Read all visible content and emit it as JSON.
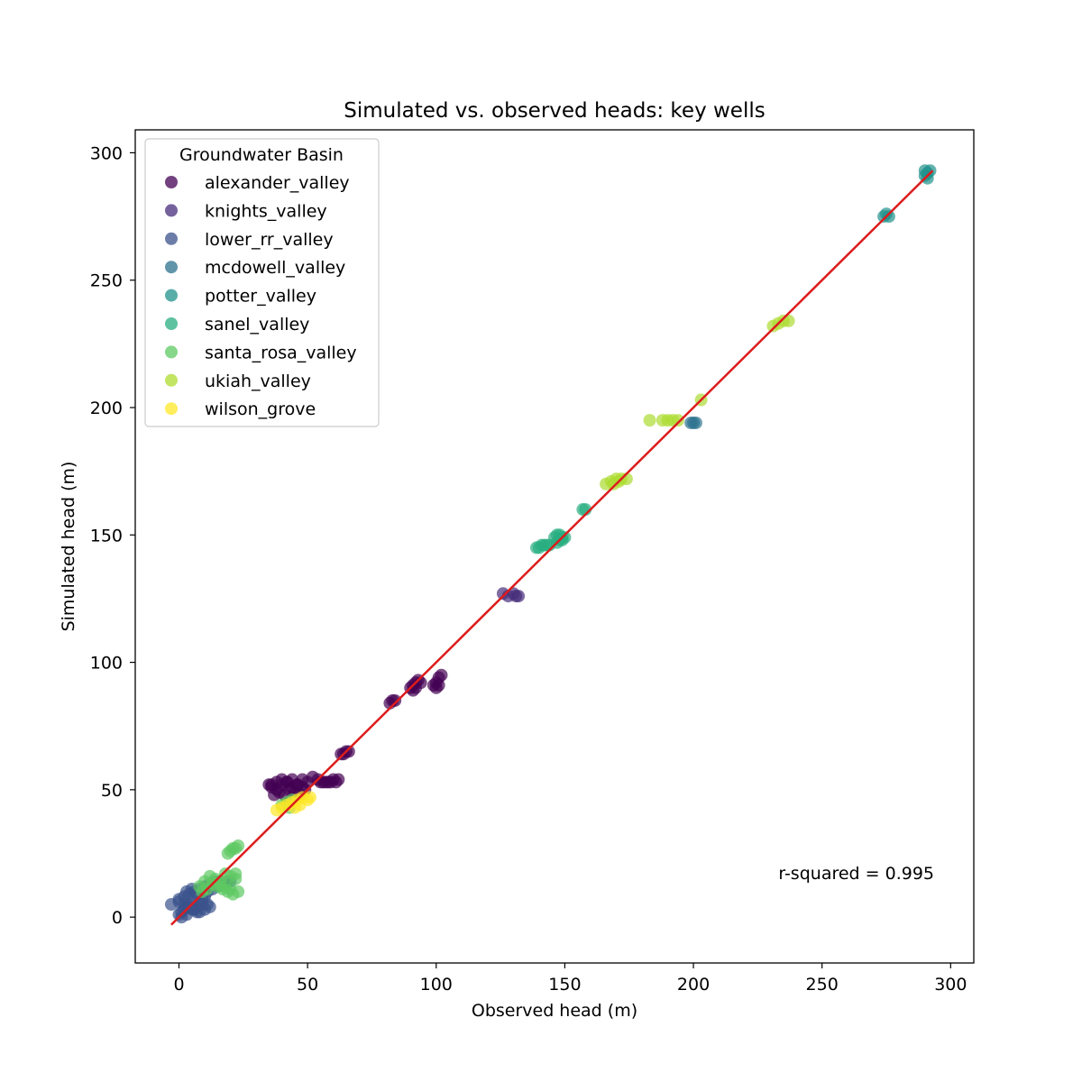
{
  "chart_data": {
    "type": "scatter",
    "title": "Simulated vs. observed heads: key wells",
    "xlabel": "Observed head (m)",
    "ylabel": "Simulated head (m)",
    "xlim": [
      -17,
      309
    ],
    "ylim": [
      -18,
      309
    ],
    "xticks": [
      0,
      50,
      100,
      150,
      200,
      250,
      300
    ],
    "yticks": [
      0,
      50,
      100,
      150,
      200,
      250,
      300
    ],
    "grid": false,
    "legend": {
      "title": "Groundwater Basin",
      "placement": "upper-left"
    },
    "annotation": "r-squared = 0.995",
    "fit_line": {
      "color": "#dd1c1c",
      "x": [
        -3,
        293
      ],
      "y": [
        -3,
        293
      ]
    },
    "series": [
      {
        "name": "alexander_valley",
        "color": "#440154",
        "x": [
          35,
          36,
          38,
          40,
          42,
          44,
          46,
          48,
          50,
          37,
          39,
          41,
          43,
          45,
          47,
          49,
          36,
          38,
          40,
          42,
          44,
          46,
          48,
          52,
          54,
          56,
          58,
          60,
          62,
          55,
          57,
          59,
          61,
          63,
          64,
          65,
          66,
          82,
          83,
          84,
          90,
          91,
          92,
          93,
          94,
          91,
          92,
          99,
          100,
          101,
          102,
          100,
          101
        ],
        "y": [
          52,
          51,
          50,
          52,
          53,
          54,
          52,
          51,
          53,
          48,
          49,
          48,
          50,
          49,
          48,
          50,
          52,
          53,
          54,
          53,
          51,
          52,
          54,
          55,
          54,
          53,
          53,
          54,
          54,
          53,
          53,
          53,
          53,
          64,
          64,
          65,
          65,
          84,
          85,
          85,
          90,
          91,
          92,
          93,
          92,
          89,
          90,
          91,
          92,
          94,
          95,
          90,
          91
        ]
      },
      {
        "name": "knights_valley",
        "color": "#472d7b",
        "x": [
          126,
          128,
          130,
          131,
          132
        ],
        "y": [
          127,
          126,
          127,
          126,
          126
        ]
      },
      {
        "name": "lower_rr_valley",
        "color": "#3b528b",
        "x": [
          -3,
          0,
          1,
          2,
          3,
          4,
          5,
          6,
          7,
          8,
          9,
          10,
          11,
          12,
          0,
          2,
          4,
          6,
          8,
          10,
          12,
          14,
          16,
          18,
          1,
          3,
          5,
          7,
          9,
          11,
          13,
          15,
          17,
          19,
          20,
          0,
          2,
          4,
          6,
          8,
          10,
          3,
          5,
          7
        ],
        "y": [
          5,
          1,
          2,
          3,
          4,
          5,
          6,
          3,
          4,
          6,
          7,
          8,
          5,
          4,
          7,
          8,
          9,
          10,
          11,
          12,
          13,
          14,
          14,
          13,
          0,
          1,
          3,
          2,
          5,
          10,
          11,
          12,
          13,
          14,
          14,
          6,
          5,
          4,
          3,
          2,
          3,
          10,
          11,
          9
        ]
      },
      {
        "name": "mcdowell_valley",
        "color": "#2c728e",
        "x": [
          199,
          200,
          201
        ],
        "y": [
          194,
          194,
          194
        ]
      },
      {
        "name": "potter_valley",
        "color": "#21918c",
        "x": [
          274,
          275,
          276,
          290,
          291,
          292,
          290,
          291
        ],
        "y": [
          275,
          276,
          275,
          291,
          292,
          293,
          293,
          290
        ]
      },
      {
        "name": "sanel_valley",
        "color": "#28ae80",
        "x": [
          139,
          140,
          141,
          142,
          143,
          144,
          146,
          147,
          148,
          149,
          150,
          147,
          148,
          149,
          157,
          158
        ],
        "y": [
          145,
          145,
          146,
          146,
          146,
          146,
          149,
          150,
          150,
          149,
          149,
          147,
          148,
          148,
          160,
          160
        ]
      },
      {
        "name": "santa_rosa_valley",
        "color": "#5ec962",
        "x": [
          8,
          10,
          12,
          14,
          16,
          18,
          20,
          22,
          9,
          11,
          13,
          15,
          17,
          19,
          21,
          23,
          19,
          20,
          21,
          22,
          23,
          16,
          18,
          20,
          22,
          40,
          42,
          44,
          43
        ],
        "y": [
          12,
          14,
          16,
          15,
          14,
          17,
          16,
          15,
          10,
          11,
          13,
          12,
          11,
          10,
          9,
          10,
          25,
          26,
          27,
          27,
          28,
          13,
          12,
          11,
          17,
          44,
          45,
          46,
          43
        ]
      },
      {
        "name": "ukiah_valley",
        "color": "#addc30",
        "x": [
          183,
          188,
          190,
          192,
          194,
          203,
          166,
          168,
          170,
          172,
          174,
          169,
          171,
          231,
          233,
          235,
          237
        ],
        "y": [
          195,
          195,
          195,
          195,
          195,
          203,
          170,
          171,
          172,
          172,
          172,
          170,
          171,
          232,
          233,
          234,
          234
        ]
      },
      {
        "name": "wilson_grove",
        "color": "#fde725",
        "x": [
          38,
          40,
          42,
          44,
          46,
          48,
          50,
          51,
          45,
          47
        ],
        "y": [
          42,
          43,
          44,
          45,
          46,
          47,
          46,
          47,
          43,
          44
        ]
      }
    ]
  }
}
